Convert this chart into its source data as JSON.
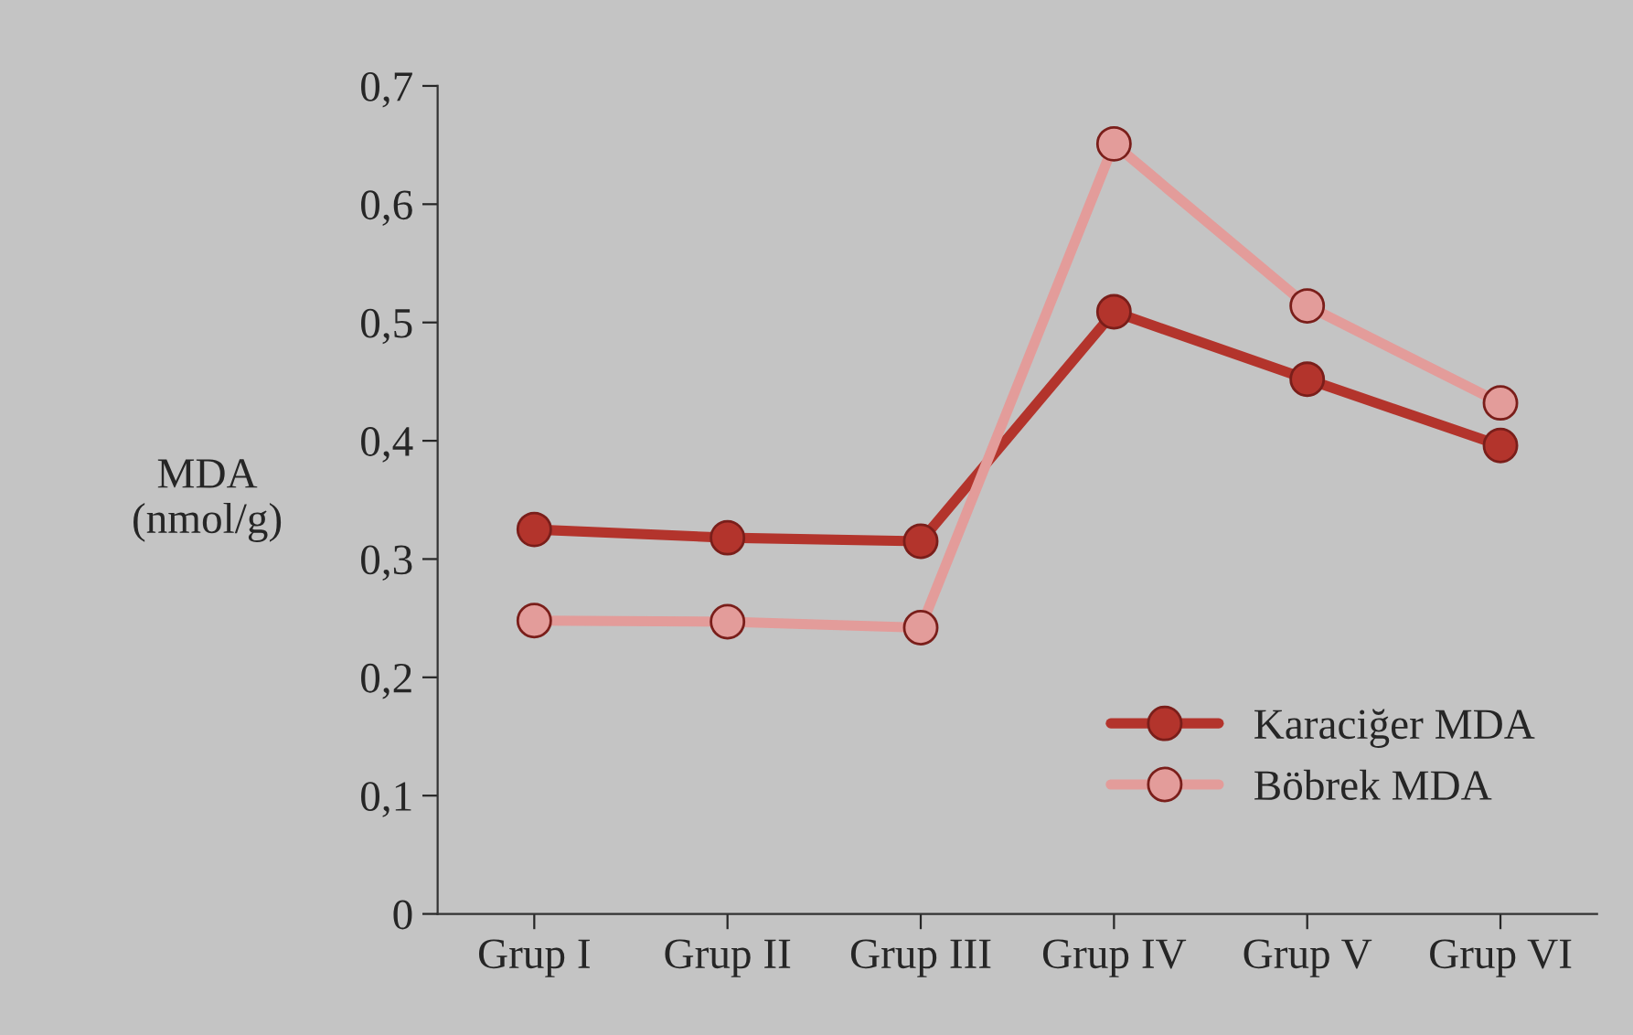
{
  "chart_data": {
    "type": "line",
    "ylabel": "MDA\n(nmol/g)",
    "categories": [
      "Grup I",
      "Grup II",
      "Grup III",
      "Grup IV",
      "Grup V",
      "Grup VI"
    ],
    "series": [
      {
        "name": "Karaciğer MDA",
        "color": "#b3342c",
        "values": [
          0.325,
          0.318,
          0.315,
          0.509,
          0.452,
          0.396
        ]
      },
      {
        "name": "Böbrek MDA",
        "color": "#e39c9a",
        "values": [
          0.248,
          0.247,
          0.242,
          0.651,
          0.514,
          0.432
        ]
      }
    ],
    "ylim": [
      0,
      0.7
    ],
    "yticks": [
      {
        "value": 0,
        "label": "0"
      },
      {
        "value": 0.1,
        "label": "0,1"
      },
      {
        "value": 0.2,
        "label": "0,2"
      },
      {
        "value": 0.3,
        "label": "0,3"
      },
      {
        "value": 0.4,
        "label": "0,4"
      },
      {
        "value": 0.5,
        "label": "0,5"
      },
      {
        "value": 0.6,
        "label": "0,6"
      },
      {
        "value": 0.7,
        "label": "0,7"
      }
    ],
    "grid": false,
    "legend": "bottom right",
    "marker": "circle",
    "line_style": "solid"
  }
}
